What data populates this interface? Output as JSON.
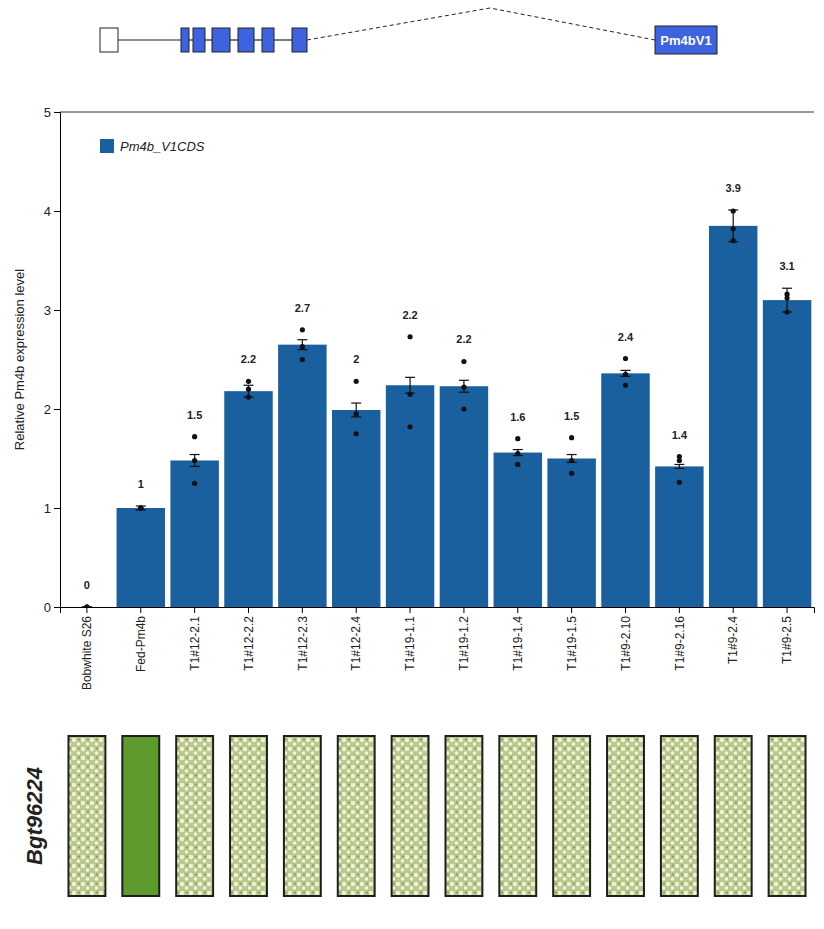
{
  "diagram": {
    "label": "Pm4bV1"
  },
  "image_strip": {
    "label": "Bgt96224"
  },
  "chart_data": {
    "type": "bar",
    "y_label": "Relative Pm4b expression level",
    "categories": [
      "Bobwhite S26",
      "Fed-Pm4b",
      "T1#12-2.1",
      "T1#12-2.2",
      "T1#12-2.3",
      "T1#12-2.4",
      "T1#19-1.1",
      "T1#19-1.2",
      "T1#19-1.4",
      "T1#19-1.5",
      "T1#9-2.10",
      "T1#9-2.16",
      "T1#9-2.4",
      "T1#9-2.5"
    ],
    "series": [
      {
        "name": "Pm4b_V1CDS",
        "color": "#1a5f9e",
        "values": [
          0,
          1.0,
          1.48,
          2.18,
          2.65,
          1.99,
          2.24,
          2.23,
          1.56,
          1.5,
          2.36,
          1.42,
          3.85,
          3.1
        ],
        "value_labels": [
          "0",
          "1",
          "1.5",
          "2.2",
          "2.7",
          "2",
          "2.2",
          "2.2",
          "1.6",
          "1.5",
          "2.4",
          "1.4",
          "3.9",
          "3.1"
        ],
        "errors": [
          0,
          0.02,
          0.06,
          0.06,
          0.05,
          0.07,
          0.08,
          0.06,
          0.03,
          0.04,
          0.03,
          0.02,
          0.16,
          0.12
        ],
        "points": [
          [
            0,
            0,
            0
          ],
          [
            1.0,
            1.0,
            1.0
          ],
          [
            1.72,
            1.48,
            1.25
          ],
          [
            2.28,
            2.2,
            2.12
          ],
          [
            2.8,
            2.63,
            2.5
          ],
          [
            2.28,
            1.95,
            1.75
          ],
          [
            2.73,
            2.15,
            1.82
          ],
          [
            2.48,
            2.22,
            2.0
          ],
          [
            1.7,
            1.55,
            1.44
          ],
          [
            1.71,
            1.48,
            1.35
          ],
          [
            2.51,
            2.35,
            2.24
          ],
          [
            1.52,
            1.48,
            1.26
          ],
          [
            4.0,
            3.82,
            3.7
          ],
          [
            3.16,
            3.12,
            2.98
          ]
        ]
      }
    ],
    "ylim": [
      0,
      5
    ],
    "yticks": [
      0,
      1,
      2,
      3,
      4,
      5
    ],
    "data_labels": true,
    "legend": "upper left",
    "grid": false
  }
}
